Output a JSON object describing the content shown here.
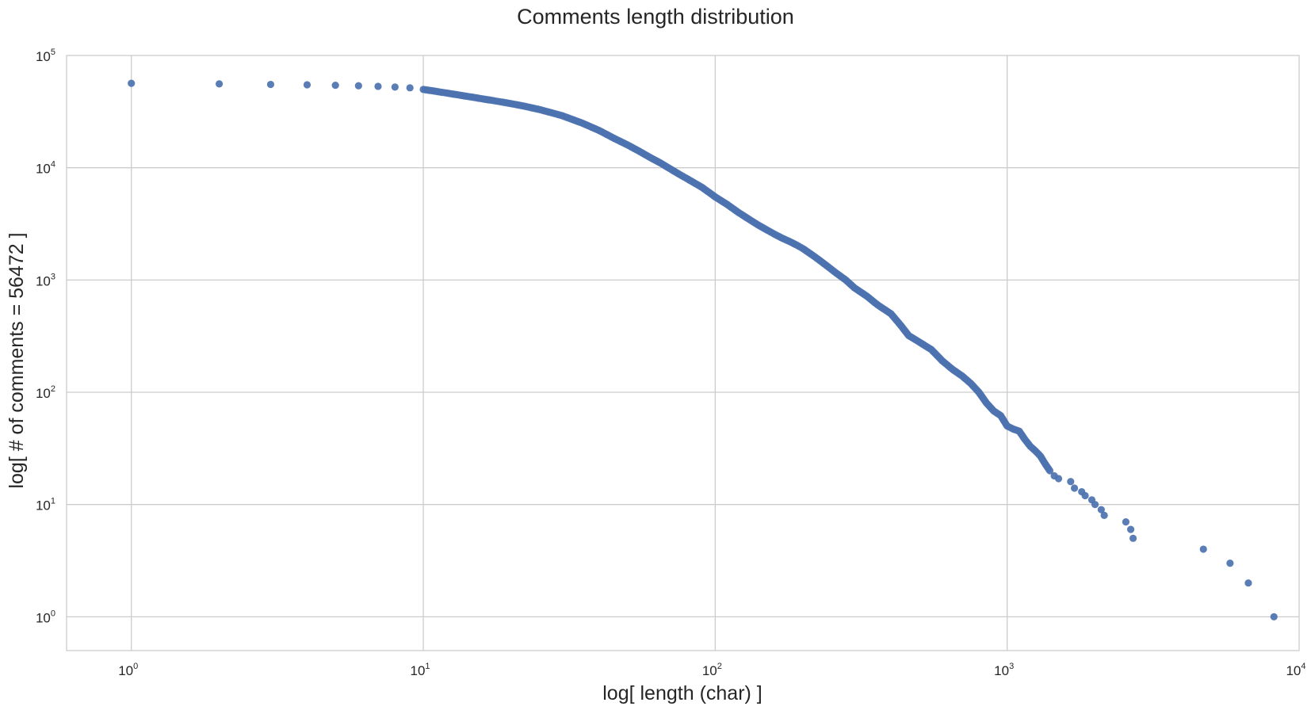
{
  "chart_data": {
    "type": "scatter",
    "title": "Comments length distribution",
    "xlabel": "log[ length (char) ]",
    "ylabel": "log[ # of comments = 56472 ]",
    "xscale": "log",
    "yscale": "log",
    "xlim": [
      0.6,
      10000
    ],
    "ylim": [
      0.5,
      100000
    ],
    "grid": true,
    "marker_color": "#4c72b0",
    "x_ticks": [
      {
        "base": "10",
        "exp": "0",
        "value": 1
      },
      {
        "base": "10",
        "exp": "1",
        "value": 10
      },
      {
        "base": "10",
        "exp": "2",
        "value": 100
      },
      {
        "base": "10",
        "exp": "3",
        "value": 1000
      },
      {
        "base": "10",
        "exp": "4",
        "value": 10000
      }
    ],
    "y_ticks": [
      {
        "base": "10",
        "exp": "0",
        "value": 1
      },
      {
        "base": "10",
        "exp": "1",
        "value": 10
      },
      {
        "base": "10",
        "exp": "2",
        "value": 100
      },
      {
        "base": "10",
        "exp": "3",
        "value": 1000
      },
      {
        "base": "10",
        "exp": "4",
        "value": 10000
      },
      {
        "base": "10",
        "exp": "5",
        "value": 100000
      }
    ],
    "points": [
      [
        1,
        56472
      ],
      [
        2,
        55800
      ],
      [
        3,
        55200
      ],
      [
        4,
        54800
      ],
      [
        5,
        54300
      ],
      [
        6,
        53700
      ],
      [
        7,
        53100
      ],
      [
        8,
        52300
      ],
      [
        9,
        51500
      ],
      [
        10,
        49800
      ],
      [
        11,
        48000
      ],
      [
        12,
        46300
      ],
      [
        13,
        44800
      ],
      [
        14,
        43400
      ],
      [
        15,
        42200
      ],
      [
        16,
        41000
      ],
      [
        17,
        40000
      ],
      [
        18,
        39000
      ],
      [
        19,
        38100
      ],
      [
        20,
        37200
      ],
      [
        22,
        35500
      ],
      [
        25,
        33000
      ],
      [
        28,
        30500
      ],
      [
        30,
        29000
      ],
      [
        35,
        25000
      ],
      [
        40,
        21500
      ],
      [
        45,
        18300
      ],
      [
        50,
        16000
      ],
      [
        55,
        14000
      ],
      [
        60,
        12300
      ],
      [
        65,
        11000
      ],
      [
        70,
        9800
      ],
      [
        75,
        8800
      ],
      [
        80,
        8000
      ],
      [
        90,
        6700
      ],
      [
        100,
        5500
      ],
      [
        110,
        4700
      ],
      [
        120,
        4000
      ],
      [
        130,
        3500
      ],
      [
        140,
        3100
      ],
      [
        150,
        2800
      ],
      [
        160,
        2550
      ],
      [
        170,
        2350
      ],
      [
        180,
        2200
      ],
      [
        190,
        2050
      ],
      [
        200,
        1900
      ],
      [
        220,
        1600
      ],
      [
        240,
        1350
      ],
      [
        260,
        1150
      ],
      [
        280,
        1000
      ],
      [
        300,
        850
      ],
      [
        330,
        720
      ],
      [
        360,
        600
      ],
      [
        400,
        500
      ],
      [
        430,
        400
      ],
      [
        460,
        320
      ],
      [
        500,
        280
      ],
      [
        550,
        240
      ],
      [
        600,
        190
      ],
      [
        650,
        160
      ],
      [
        700,
        140
      ],
      [
        750,
        120
      ],
      [
        800,
        100
      ],
      [
        850,
        80
      ],
      [
        900,
        68
      ],
      [
        950,
        62
      ],
      [
        1000,
        50
      ],
      [
        1050,
        47
      ],
      [
        1100,
        45
      ],
      [
        1150,
        38
      ],
      [
        1200,
        33
      ],
      [
        1250,
        30
      ],
      [
        1300,
        27
      ],
      [
        1350,
        23
      ],
      [
        1400,
        20
      ],
      [
        1450,
        18
      ],
      [
        1500,
        17
      ],
      [
        1650,
        16
      ],
      [
        1700,
        14
      ],
      [
        1800,
        13
      ],
      [
        1850,
        12
      ],
      [
        1950,
        11
      ],
      [
        2000,
        10
      ],
      [
        2100,
        9
      ],
      [
        2150,
        8
      ],
      [
        2550,
        7
      ],
      [
        2650,
        6
      ],
      [
        2700,
        5
      ],
      [
        4700,
        4
      ],
      [
        5800,
        3
      ],
      [
        6700,
        2
      ],
      [
        8200,
        1
      ]
    ]
  }
}
